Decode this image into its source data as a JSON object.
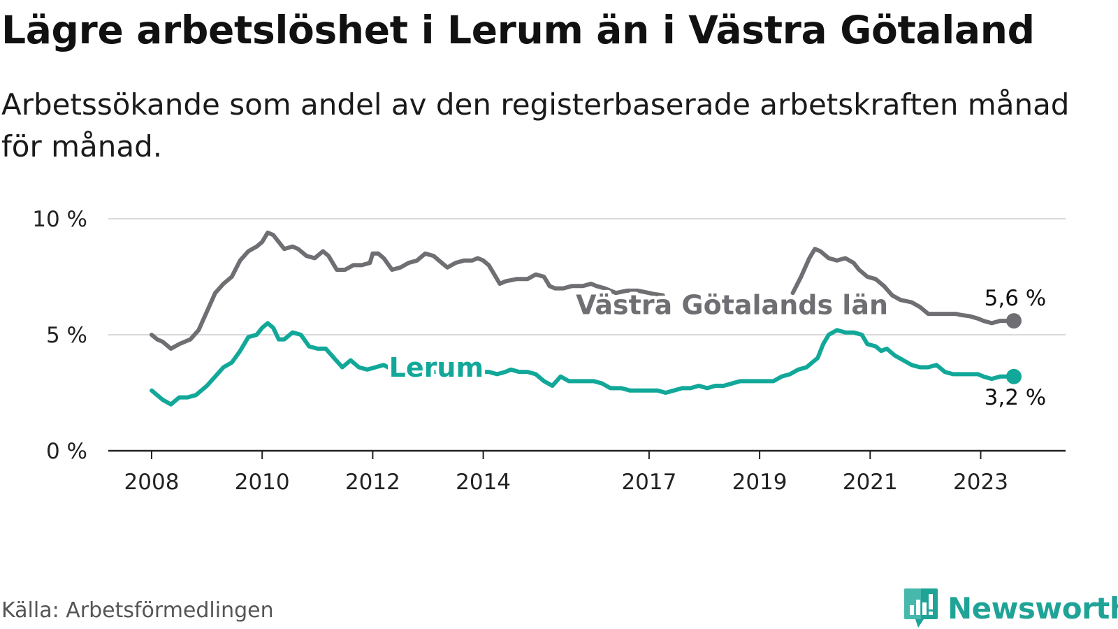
{
  "title": "Lägre arbetslöshet i Lerum än i Västra Götaland",
  "subtitle": "Arbetssökande som andel av den registerbaserade arbetskraften månad för månad.",
  "source": "Källa: Arbetsförmedlingen",
  "brand": {
    "name": "Newsworthy",
    "color": "#1fa396"
  },
  "colors": {
    "region": "#6f6f73",
    "lerum": "#12a899",
    "grid": "#d9d9d9",
    "axis": "#222222"
  },
  "chart_data": {
    "type": "line",
    "title": "Lägre arbetslöshet i Lerum än i Västra Götaland",
    "xlabel": "",
    "ylabel": "",
    "ylim": [
      0,
      10
    ],
    "xlim": [
      2008,
      2024.5
    ],
    "y_ticks": [
      {
        "value": 0,
        "label": "0 %"
      },
      {
        "value": 5,
        "label": "5 %"
      },
      {
        "value": 10,
        "label": "10 %"
      }
    ],
    "x_ticks": [
      {
        "value": 2008,
        "label": "2008"
      },
      {
        "value": 2010,
        "label": "2010"
      },
      {
        "value": 2012,
        "label": "2012"
      },
      {
        "value": 2014,
        "label": "2014"
      },
      {
        "value": 2017,
        "label": "2017"
      },
      {
        "value": 2019,
        "label": "2019"
      },
      {
        "value": 2021,
        "label": "2021"
      },
      {
        "value": 2023,
        "label": "2023"
      }
    ],
    "series": [
      {
        "name": "Västra Götalands län",
        "end_label": "5,6 %",
        "points": [
          [
            2008.0,
            5.0
          ],
          [
            2008.1,
            4.8
          ],
          [
            2008.2,
            4.7
          ],
          [
            2008.35,
            4.4
          ],
          [
            2008.5,
            4.6
          ],
          [
            2008.7,
            4.8
          ],
          [
            2008.85,
            5.2
          ],
          [
            2009.0,
            6.0
          ],
          [
            2009.15,
            6.8
          ],
          [
            2009.3,
            7.2
          ],
          [
            2009.45,
            7.5
          ],
          [
            2009.6,
            8.2
          ],
          [
            2009.75,
            8.6
          ],
          [
            2009.9,
            8.8
          ],
          [
            2010.0,
            9.0
          ],
          [
            2010.1,
            9.4
          ],
          [
            2010.2,
            9.3
          ],
          [
            2010.3,
            9.0
          ],
          [
            2010.4,
            8.7
          ],
          [
            2010.55,
            8.8
          ],
          [
            2010.65,
            8.7
          ],
          [
            2010.8,
            8.4
          ],
          [
            2010.95,
            8.3
          ],
          [
            2011.1,
            8.6
          ],
          [
            2011.2,
            8.4
          ],
          [
            2011.35,
            7.8
          ],
          [
            2011.5,
            7.8
          ],
          [
            2011.65,
            8.0
          ],
          [
            2011.8,
            8.0
          ],
          [
            2011.95,
            8.1
          ],
          [
            2012.0,
            8.5
          ],
          [
            2012.1,
            8.5
          ],
          [
            2012.2,
            8.3
          ],
          [
            2012.35,
            7.8
          ],
          [
            2012.5,
            7.9
          ],
          [
            2012.65,
            8.1
          ],
          [
            2012.8,
            8.2
          ],
          [
            2012.95,
            8.5
          ],
          [
            2013.1,
            8.4
          ],
          [
            2013.2,
            8.2
          ],
          [
            2013.35,
            7.9
          ],
          [
            2013.5,
            8.1
          ],
          [
            2013.65,
            8.2
          ],
          [
            2013.8,
            8.2
          ],
          [
            2013.9,
            8.3
          ],
          [
            2014.0,
            8.2
          ],
          [
            2014.1,
            8.0
          ],
          [
            2014.2,
            7.6
          ],
          [
            2014.3,
            7.2
          ],
          [
            2014.4,
            7.3
          ],
          [
            2014.6,
            7.4
          ],
          [
            2014.8,
            7.4
          ],
          [
            2014.95,
            7.6
          ],
          [
            2015.1,
            7.5
          ],
          [
            2015.2,
            7.1
          ],
          [
            2015.3,
            7.0
          ],
          [
            2015.45,
            7.0
          ],
          [
            2015.6,
            7.1
          ],
          [
            2015.8,
            7.1
          ],
          [
            2015.95,
            7.2
          ],
          [
            2016.05,
            7.1
          ],
          [
            2016.2,
            7.0
          ],
          [
            2016.4,
            6.8
          ],
          [
            2016.6,
            6.9
          ],
          [
            2016.8,
            6.9
          ],
          [
            2017.0,
            6.8
          ],
          [
            2017.1,
            6.75
          ],
          [
            2017.25,
            6.7
          ]
        ],
        "points_b": [
          [
            2019.6,
            6.8
          ],
          [
            2019.75,
            7.5
          ],
          [
            2019.9,
            8.3
          ],
          [
            2020.0,
            8.7
          ],
          [
            2020.1,
            8.6
          ],
          [
            2020.25,
            8.3
          ],
          [
            2020.4,
            8.2
          ],
          [
            2020.55,
            8.3
          ],
          [
            2020.7,
            8.1
          ],
          [
            2020.8,
            7.8
          ],
          [
            2020.95,
            7.5
          ],
          [
            2021.1,
            7.4
          ],
          [
            2021.25,
            7.1
          ],
          [
            2021.4,
            6.7
          ],
          [
            2021.55,
            6.5
          ],
          [
            2021.75,
            6.4
          ],
          [
            2021.9,
            6.2
          ],
          [
            2022.05,
            5.9
          ],
          [
            2022.2,
            5.9
          ],
          [
            2022.4,
            5.9
          ],
          [
            2022.55,
            5.9
          ],
          [
            2022.65,
            5.85
          ],
          [
            2022.8,
            5.8
          ],
          [
            2022.95,
            5.7
          ],
          [
            2023.05,
            5.6
          ],
          [
            2023.2,
            5.5
          ],
          [
            2023.35,
            5.6
          ],
          [
            2023.5,
            5.6
          ],
          [
            2023.6,
            5.6
          ]
        ]
      },
      {
        "name": "Lerum",
        "end_label": "3,2 %",
        "points": [
          [
            2008.0,
            2.6
          ],
          [
            2008.1,
            2.4
          ],
          [
            2008.2,
            2.2
          ],
          [
            2008.35,
            2.0
          ],
          [
            2008.5,
            2.3
          ],
          [
            2008.65,
            2.3
          ],
          [
            2008.8,
            2.4
          ],
          [
            2009.0,
            2.8
          ],
          [
            2009.15,
            3.2
          ],
          [
            2009.3,
            3.6
          ],
          [
            2009.45,
            3.8
          ],
          [
            2009.6,
            4.3
          ],
          [
            2009.75,
            4.9
          ],
          [
            2009.9,
            5.0
          ],
          [
            2010.0,
            5.3
          ],
          [
            2010.1,
            5.5
          ],
          [
            2010.2,
            5.3
          ],
          [
            2010.3,
            4.8
          ],
          [
            2010.4,
            4.8
          ],
          [
            2010.55,
            5.1
          ],
          [
            2010.7,
            5.0
          ],
          [
            2010.85,
            4.5
          ],
          [
            2011.0,
            4.4
          ],
          [
            2011.15,
            4.4
          ],
          [
            2011.3,
            4.0
          ],
          [
            2011.45,
            3.6
          ],
          [
            2011.6,
            3.9
          ],
          [
            2011.75,
            3.6
          ],
          [
            2011.9,
            3.5
          ],
          [
            2012.05,
            3.6
          ],
          [
            2012.2,
            3.7
          ],
          [
            2012.35,
            3.5
          ],
          [
            2012.5,
            3.4
          ],
          [
            2012.7,
            3.4
          ],
          [
            2012.9,
            3.4
          ],
          [
            2013.1,
            3.4
          ],
          [
            2013.3,
            3.4
          ],
          [
            2013.5,
            3.4
          ],
          [
            2013.7,
            3.4
          ],
          [
            2013.9,
            3.4
          ],
          [
            2014.1,
            3.4
          ],
          [
            2014.25,
            3.3
          ],
          [
            2014.4,
            3.4
          ],
          [
            2014.5,
            3.5
          ],
          [
            2014.65,
            3.4
          ],
          [
            2014.8,
            3.4
          ],
          [
            2014.95,
            3.3
          ],
          [
            2015.1,
            3.0
          ],
          [
            2015.25,
            2.8
          ],
          [
            2015.4,
            3.2
          ],
          [
            2015.55,
            3.0
          ],
          [
            2015.7,
            3.0
          ],
          [
            2015.85,
            3.0
          ],
          [
            2016.0,
            3.0
          ],
          [
            2016.15,
            2.9
          ],
          [
            2016.3,
            2.7
          ],
          [
            2016.5,
            2.7
          ],
          [
            2016.65,
            2.6
          ],
          [
            2016.8,
            2.6
          ],
          [
            2017.0,
            2.6
          ],
          [
            2017.15,
            2.6
          ],
          [
            2017.3,
            2.5
          ],
          [
            2017.45,
            2.6
          ],
          [
            2017.6,
            2.7
          ],
          [
            2017.75,
            2.7
          ],
          [
            2017.9,
            2.8
          ],
          [
            2018.05,
            2.7
          ],
          [
            2018.2,
            2.8
          ],
          [
            2018.35,
            2.8
          ],
          [
            2018.5,
            2.9
          ],
          [
            2018.65,
            3.0
          ],
          [
            2018.8,
            3.0
          ],
          [
            2018.95,
            3.0
          ],
          [
            2019.1,
            3.0
          ],
          [
            2019.25,
            3.0
          ],
          [
            2019.4,
            3.2
          ],
          [
            2019.55,
            3.3
          ],
          [
            2019.7,
            3.5
          ],
          [
            2019.85,
            3.6
          ],
          [
            2019.95,
            3.8
          ],
          [
            2020.05,
            4.0
          ],
          [
            2020.15,
            4.6
          ],
          [
            2020.25,
            5.0
          ],
          [
            2020.4,
            5.2
          ],
          [
            2020.55,
            5.1
          ],
          [
            2020.7,
            5.1
          ],
          [
            2020.85,
            5.0
          ],
          [
            2020.95,
            4.6
          ],
          [
            2021.1,
            4.5
          ],
          [
            2021.2,
            4.3
          ],
          [
            2021.3,
            4.4
          ],
          [
            2021.45,
            4.1
          ],
          [
            2021.6,
            3.9
          ],
          [
            2021.75,
            3.7
          ],
          [
            2021.9,
            3.6
          ],
          [
            2022.05,
            3.6
          ],
          [
            2022.2,
            3.7
          ],
          [
            2022.35,
            3.4
          ],
          [
            2022.5,
            3.3
          ],
          [
            2022.65,
            3.3
          ],
          [
            2022.8,
            3.3
          ],
          [
            2022.95,
            3.3
          ],
          [
            2023.05,
            3.2
          ],
          [
            2023.2,
            3.1
          ],
          [
            2023.35,
            3.2
          ],
          [
            2023.5,
            3.2
          ],
          [
            2023.6,
            3.2
          ]
        ]
      }
    ],
    "annotations": [
      {
        "text": "Västra Götalands län",
        "x": 2018.5,
        "y": 6.25,
        "series": 0
      },
      {
        "text": "Lerum",
        "x": 2013.15,
        "y": 3.55,
        "series": 1
      }
    ]
  }
}
